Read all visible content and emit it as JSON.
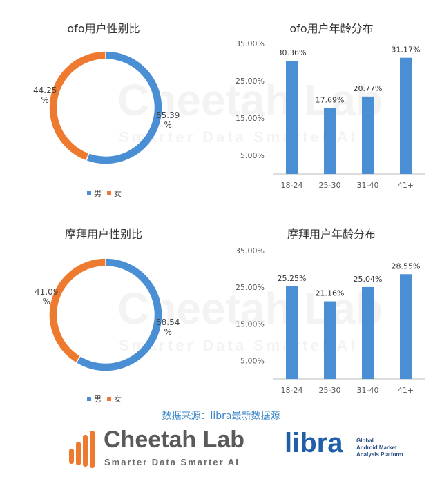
{
  "colors": {
    "male": "#4a8fd4",
    "female": "#ee7a30",
    "bar": "#4a8fd4",
    "source": "#3a87c8"
  },
  "watermark": {
    "main": "Cheetah Lab",
    "sub": "Smarter Data Smarter AI"
  },
  "chart_data": [
    {
      "type": "pie",
      "title": "ofo用户性别比",
      "slices": [
        {
          "name": "男",
          "value": 55.39
        },
        {
          "name": "女",
          "value": 44.25
        }
      ],
      "labels": [
        "55.39\n%",
        "44.25\n%"
      ]
    },
    {
      "type": "bar",
      "title": "ofo用户年龄分布",
      "categories": [
        "18-24",
        "25-30",
        "31-40",
        "41+"
      ],
      "values": [
        30.36,
        17.69,
        20.77,
        31.17
      ],
      "value_labels": [
        "30.36%",
        "17.69%",
        "20.77%",
        "31.17%"
      ],
      "yticks": [
        "5.00%",
        "15.00%",
        "25.00%",
        "35.00%"
      ],
      "ylim": [
        0,
        35
      ]
    },
    {
      "type": "pie",
      "title": "摩拜用户性别比",
      "slices": [
        {
          "name": "男",
          "value": 58.54
        },
        {
          "name": "女",
          "value": 41.09
        }
      ],
      "labels": [
        "58.54\n%",
        "41.09\n%"
      ]
    },
    {
      "type": "bar",
      "title": "摩拜用户年龄分布",
      "categories": [
        "18-24",
        "25-30",
        "31-40",
        "41+"
      ],
      "values": [
        25.25,
        21.16,
        25.04,
        28.55
      ],
      "value_labels": [
        "25.25%",
        "21.16%",
        "25.04%",
        "28.55%"
      ],
      "yticks": [
        "5.00%",
        "15.00%",
        "25.00%",
        "35.00%"
      ],
      "ylim": [
        0,
        35
      ]
    }
  ],
  "legend": {
    "male": "男",
    "female": "女"
  },
  "source_text": "数据来源：libra最新数据源",
  "footer": {
    "brand1": "Cheetah Lab",
    "brand1_sub": "Smarter Data Smarter AI",
    "brand2": "libra",
    "brand2_sub": [
      "Global",
      "Android Market",
      "Analysis Platform"
    ]
  }
}
